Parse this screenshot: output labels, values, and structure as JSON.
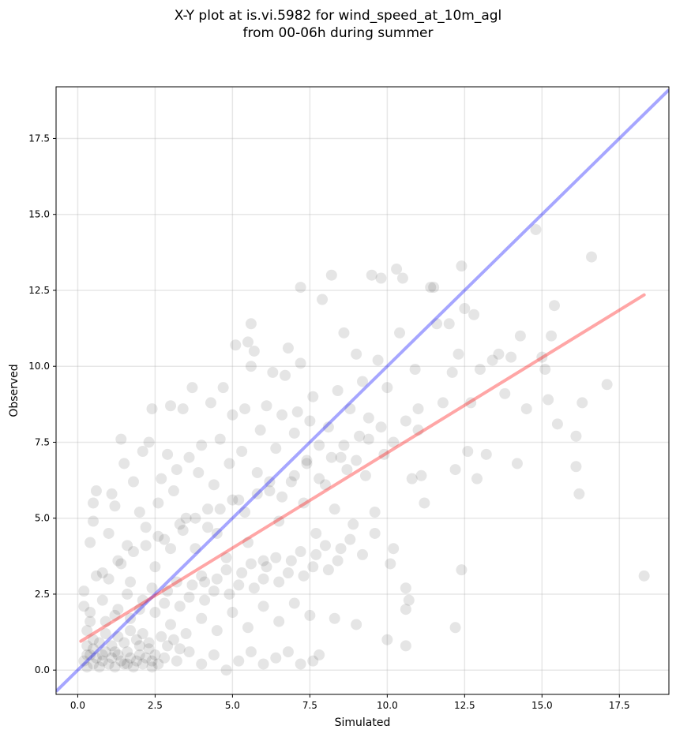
{
  "chart_data": {
    "type": "scatter",
    "title": "X-Y plot at is.vi.5982 for wind_speed_at_10m_agl",
    "subtitle": "from 00-06h during summer",
    "xlabel": "Simulated",
    "ylabel": "Observed",
    "xlim": [
      -0.7,
      19.1
    ],
    "ylim": [
      -0.8,
      19.2
    ],
    "x_ticks": [
      0.0,
      2.5,
      5.0,
      7.5,
      10.0,
      12.5,
      15.0,
      17.5
    ],
    "x_tick_labels": [
      "0.0",
      "2.5",
      "5.0",
      "7.5",
      "10.0",
      "12.5",
      "15.0",
      "17.5"
    ],
    "y_ticks": [
      0.0,
      2.5,
      5.0,
      7.5,
      10.0,
      12.5,
      15.0,
      17.5
    ],
    "y_tick_labels": [
      "0.0",
      "2.5",
      "5.0",
      "7.5",
      "10.0",
      "12.5",
      "15.0",
      "17.5"
    ],
    "grid": true,
    "point_color": "#000000",
    "point_alpha": 0.1,
    "identity_line": {
      "color": "#0000ff",
      "alpha": 0.35,
      "from": [
        -0.7,
        -0.7
      ],
      "to": [
        19.1,
        19.1
      ]
    },
    "regression_line": {
      "color": "#ff0000",
      "alpha": 0.35,
      "from": [
        0.1,
        0.95
      ],
      "to": [
        18.3,
        12.35
      ]
    },
    "points": [
      [
        0.2,
        0.3
      ],
      [
        0.3,
        0.1
      ],
      [
        0.4,
        0.5
      ],
      [
        0.5,
        0.2
      ],
      [
        0.6,
        0.4
      ],
      [
        0.7,
        0.1
      ],
      [
        0.8,
        0.3
      ],
      [
        0.9,
        0.6
      ],
      [
        1.0,
        0.2
      ],
      [
        1.1,
        0.4
      ],
      [
        1.2,
        0.1
      ],
      [
        1.3,
        0.5
      ],
      [
        1.4,
        0.3
      ],
      [
        1.5,
        0.2
      ],
      [
        1.6,
        0.6
      ],
      [
        1.7,
        0.4
      ],
      [
        1.8,
        0.1
      ],
      [
        1.9,
        0.3
      ],
      [
        2.0,
        0.5
      ],
      [
        2.1,
        0.2
      ],
      [
        2.2,
        0.4
      ],
      [
        2.3,
        0.7
      ],
      [
        2.4,
        0.3
      ],
      [
        2.5,
        0.5
      ],
      [
        2.6,
        0.2
      ],
      [
        0.3,
        0.8
      ],
      [
        0.5,
        1.0
      ],
      [
        0.7,
        0.9
      ],
      [
        0.9,
        1.2
      ],
      [
        1.1,
        0.8
      ],
      [
        1.3,
        1.1
      ],
      [
        1.5,
        0.9
      ],
      [
        1.7,
        1.3
      ],
      [
        1.9,
        1.0
      ],
      [
        2.1,
        1.2
      ],
      [
        2.3,
        0.9
      ],
      [
        2.7,
        1.1
      ],
      [
        2.9,
        0.8
      ],
      [
        3.1,
        1.0
      ],
      [
        3.3,
        0.7
      ],
      [
        0.2,
        2.6
      ],
      [
        0.2,
        2.1
      ],
      [
        0.3,
        1.3
      ],
      [
        0.4,
        1.6
      ],
      [
        0.4,
        4.2
      ],
      [
        0.5,
        4.9
      ],
      [
        0.5,
        5.5
      ],
      [
        0.6,
        5.9
      ],
      [
        0.6,
        3.1
      ],
      [
        0.8,
        3.2
      ],
      [
        1.0,
        4.5
      ],
      [
        1.1,
        5.8
      ],
      [
        1.2,
        5.4
      ],
      [
        1.3,
        3.6
      ],
      [
        1.4,
        7.6
      ],
      [
        1.5,
        6.8
      ],
      [
        1.6,
        4.1
      ],
      [
        1.7,
        2.9
      ],
      [
        1.8,
        6.2
      ],
      [
        2.0,
        5.2
      ],
      [
        2.1,
        7.2
      ],
      [
        2.2,
        4.7
      ],
      [
        2.3,
        7.5
      ],
      [
        2.4,
        8.6
      ],
      [
        2.5,
        3.4
      ],
      [
        2.6,
        5.5
      ],
      [
        2.7,
        6.3
      ],
      [
        2.8,
        4.3
      ],
      [
        2.9,
        7.1
      ],
      [
        3.0,
        8.7
      ],
      [
        3.1,
        5.9
      ],
      [
        3.2,
        6.6
      ],
      [
        3.3,
        4.8
      ],
      [
        3.4,
        8.6
      ],
      [
        3.5,
        5.0
      ],
      [
        3.6,
        7.0
      ],
      [
        3.7,
        9.3
      ],
      [
        3.8,
        4.0
      ],
      [
        3.9,
        6.5
      ],
      [
        4.0,
        7.4
      ],
      [
        4.1,
        2.9
      ],
      [
        4.2,
        5.3
      ],
      [
        4.3,
        8.8
      ],
      [
        4.4,
        6.1
      ],
      [
        4.5,
        4.5
      ],
      [
        4.6,
        7.6
      ],
      [
        4.7,
        9.3
      ],
      [
        4.8,
        3.7
      ],
      [
        4.9,
        6.8
      ],
      [
        5.0,
        8.4
      ],
      [
        5.1,
        10.7
      ],
      [
        5.2,
        5.6
      ],
      [
        5.3,
        7.2
      ],
      [
        5.4,
        8.6
      ],
      [
        5.5,
        4.2
      ],
      [
        5.5,
        10.8
      ],
      [
        5.6,
        11.4
      ],
      [
        5.6,
        10.0
      ],
      [
        5.7,
        10.5
      ],
      [
        5.8,
        6.5
      ],
      [
        5.9,
        7.9
      ],
      [
        6.0,
        3.6
      ],
      [
        6.1,
        8.7
      ],
      [
        6.2,
        5.9
      ],
      [
        6.3,
        9.8
      ],
      [
        6.4,
        7.3
      ],
      [
        6.5,
        4.9
      ],
      [
        6.6,
        8.4
      ],
      [
        6.7,
        9.7
      ],
      [
        6.8,
        10.6
      ],
      [
        6.9,
        6.2
      ],
      [
        7.0,
        7.8
      ],
      [
        7.1,
        8.5
      ],
      [
        7.2,
        12.6
      ],
      [
        7.2,
        10.1
      ],
      [
        7.3,
        5.5
      ],
      [
        7.4,
        6.9
      ],
      [
        7.5,
        8.2
      ],
      [
        7.6,
        9.0
      ],
      [
        7.7,
        4.5
      ],
      [
        7.8,
        7.4
      ],
      [
        7.9,
        12.2
      ],
      [
        8.0,
        6.1
      ],
      [
        8.1,
        8.0
      ],
      [
        8.2,
        13.0
      ],
      [
        8.3,
        5.3
      ],
      [
        8.4,
        9.2
      ],
      [
        8.5,
        7.0
      ],
      [
        8.6,
        11.1
      ],
      [
        8.7,
        6.6
      ],
      [
        8.8,
        8.6
      ],
      [
        8.9,
        4.8
      ],
      [
        9.0,
        10.4
      ],
      [
        9.1,
        7.7
      ],
      [
        9.2,
        9.5
      ],
      [
        9.3,
        6.4
      ],
      [
        9.4,
        8.3
      ],
      [
        9.5,
        13.0
      ],
      [
        9.6,
        5.2
      ],
      [
        9.7,
        10.2
      ],
      [
        9.8,
        12.9
      ],
      [
        9.9,
        7.1
      ],
      [
        10.0,
        9.3
      ],
      [
        10.1,
        3.5
      ],
      [
        10.2,
        4.0
      ],
      [
        10.3,
        13.2
      ],
      [
        10.4,
        11.1
      ],
      [
        10.5,
        12.9
      ],
      [
        10.6,
        2.7
      ],
      [
        10.6,
        2.0
      ],
      [
        10.7,
        2.3
      ],
      [
        10.8,
        6.3
      ],
      [
        10.9,
        9.9
      ],
      [
        11.0,
        7.9
      ],
      [
        11.1,
        6.4
      ],
      [
        11.2,
        5.5
      ],
      [
        11.4,
        12.6
      ],
      [
        11.5,
        12.6
      ],
      [
        11.6,
        11.4
      ],
      [
        11.8,
        8.8
      ],
      [
        12.0,
        11.4
      ],
      [
        12.1,
        9.8
      ],
      [
        12.2,
        6.6
      ],
      [
        12.3,
        10.4
      ],
      [
        12.4,
        13.3
      ],
      [
        12.5,
        11.9
      ],
      [
        12.6,
        7.2
      ],
      [
        12.7,
        8.8
      ],
      [
        12.8,
        11.7
      ],
      [
        12.9,
        6.3
      ],
      [
        13.0,
        9.9
      ],
      [
        13.2,
        7.1
      ],
      [
        13.4,
        10.2
      ],
      [
        13.6,
        10.4
      ],
      [
        13.8,
        9.1
      ],
      [
        14.0,
        10.3
      ],
      [
        14.2,
        6.8
      ],
      [
        14.3,
        11.0
      ],
      [
        14.5,
        8.6
      ],
      [
        14.8,
        14.5
      ],
      [
        15.0,
        10.3
      ],
      [
        15.1,
        9.9
      ],
      [
        15.2,
        8.9
      ],
      [
        15.3,
        11.0
      ],
      [
        15.4,
        12.0
      ],
      [
        15.5,
        8.1
      ],
      [
        16.1,
        7.7
      ],
      [
        16.1,
        6.7
      ],
      [
        16.2,
        5.8
      ],
      [
        16.3,
        8.8
      ],
      [
        16.6,
        13.6
      ],
      [
        17.1,
        9.4
      ],
      [
        18.3,
        3.1
      ],
      [
        12.2,
        1.4
      ],
      [
        12.4,
        3.3
      ],
      [
        10.0,
        1.0
      ],
      [
        10.6,
        0.8
      ],
      [
        9.0,
        1.5
      ],
      [
        8.3,
        1.7
      ],
      [
        7.6,
        0.3
      ],
      [
        0.3,
        0.5
      ],
      [
        0.5,
        0.7
      ],
      [
        0.8,
        0.5
      ],
      [
        1.2,
        0.6
      ],
      [
        1.6,
        0.2
      ],
      [
        2.0,
        0.8
      ],
      [
        2.4,
        0.1
      ],
      [
        2.8,
        0.4
      ],
      [
        3.2,
        0.3
      ],
      [
        3.6,
        0.6
      ],
      [
        4.0,
        0.2
      ],
      [
        4.4,
        0.5
      ],
      [
        4.8,
        0.0
      ],
      [
        5.2,
        0.3
      ],
      [
        5.6,
        0.6
      ],
      [
        6.0,
        0.2
      ],
      [
        6.4,
        0.4
      ],
      [
        6.8,
        0.6
      ],
      [
        7.2,
        0.2
      ],
      [
        7.8,
        0.5
      ],
      [
        0.4,
        1.9
      ],
      [
        0.8,
        2.3
      ],
      [
        1.2,
        1.8
      ],
      [
        1.6,
        2.5
      ],
      [
        2.0,
        2.0
      ],
      [
        2.4,
        2.7
      ],
      [
        2.8,
        2.2
      ],
      [
        3.2,
        2.9
      ],
      [
        3.6,
        2.4
      ],
      [
        4.0,
        3.1
      ],
      [
        4.4,
        2.6
      ],
      [
        4.8,
        3.3
      ],
      [
        5.2,
        2.8
      ],
      [
        5.6,
        3.5
      ],
      [
        6.0,
        3.0
      ],
      [
        6.4,
        3.7
      ],
      [
        6.8,
        3.2
      ],
      [
        7.2,
        3.9
      ],
      [
        7.6,
        3.4
      ],
      [
        8.0,
        4.1
      ],
      [
        8.4,
        3.6
      ],
      [
        8.8,
        4.3
      ],
      [
        9.2,
        3.8
      ],
      [
        9.6,
        4.5
      ],
      [
        1.0,
        3.0
      ],
      [
        1.4,
        3.5
      ],
      [
        1.8,
        3.9
      ],
      [
        2.2,
        4.1
      ],
      [
        2.6,
        4.4
      ],
      [
        3.0,
        4.0
      ],
      [
        3.4,
        4.6
      ],
      [
        3.8,
        5.0
      ],
      [
        4.2,
        4.7
      ],
      [
        4.6,
        5.3
      ],
      [
        5.0,
        5.6
      ],
      [
        5.4,
        5.2
      ],
      [
        5.8,
        5.8
      ],
      [
        6.2,
        6.2
      ],
      [
        6.6,
        5.7
      ],
      [
        7.0,
        6.4
      ],
      [
        7.4,
        6.8
      ],
      [
        7.8,
        6.3
      ],
      [
        8.2,
        7.0
      ],
      [
        8.6,
        7.4
      ],
      [
        9.0,
        6.9
      ],
      [
        9.4,
        7.6
      ],
      [
        9.8,
        8.0
      ],
      [
        10.2,
        7.5
      ],
      [
        10.6,
        8.2
      ],
      [
        11.0,
        8.6
      ],
      [
        0.9,
        1.6
      ],
      [
        1.3,
        2.0
      ],
      [
        1.7,
        1.7
      ],
      [
        2.1,
        2.3
      ],
      [
        2.5,
        1.9
      ],
      [
        2.9,
        2.6
      ],
      [
        3.3,
        2.1
      ],
      [
        3.7,
        2.8
      ],
      [
        4.1,
        2.3
      ],
      [
        4.5,
        3.0
      ],
      [
        4.9,
        2.5
      ],
      [
        5.3,
        3.2
      ],
      [
        5.7,
        2.7
      ],
      [
        6.1,
        3.4
      ],
      [
        6.5,
        2.9
      ],
      [
        6.9,
        3.6
      ],
      [
        7.3,
        3.1
      ],
      [
        7.7,
        3.8
      ],
      [
        8.1,
        3.3
      ],
      [
        8.5,
        4.0
      ],
      [
        3.0,
        1.5
      ],
      [
        3.5,
        1.2
      ],
      [
        4.0,
        1.7
      ],
      [
        4.5,
        1.3
      ],
      [
        5.0,
        1.9
      ],
      [
        5.5,
        1.4
      ],
      [
        6.0,
        2.1
      ],
      [
        6.5,
        1.6
      ],
      [
        7.0,
        2.2
      ],
      [
        7.5,
        1.8
      ]
    ]
  }
}
